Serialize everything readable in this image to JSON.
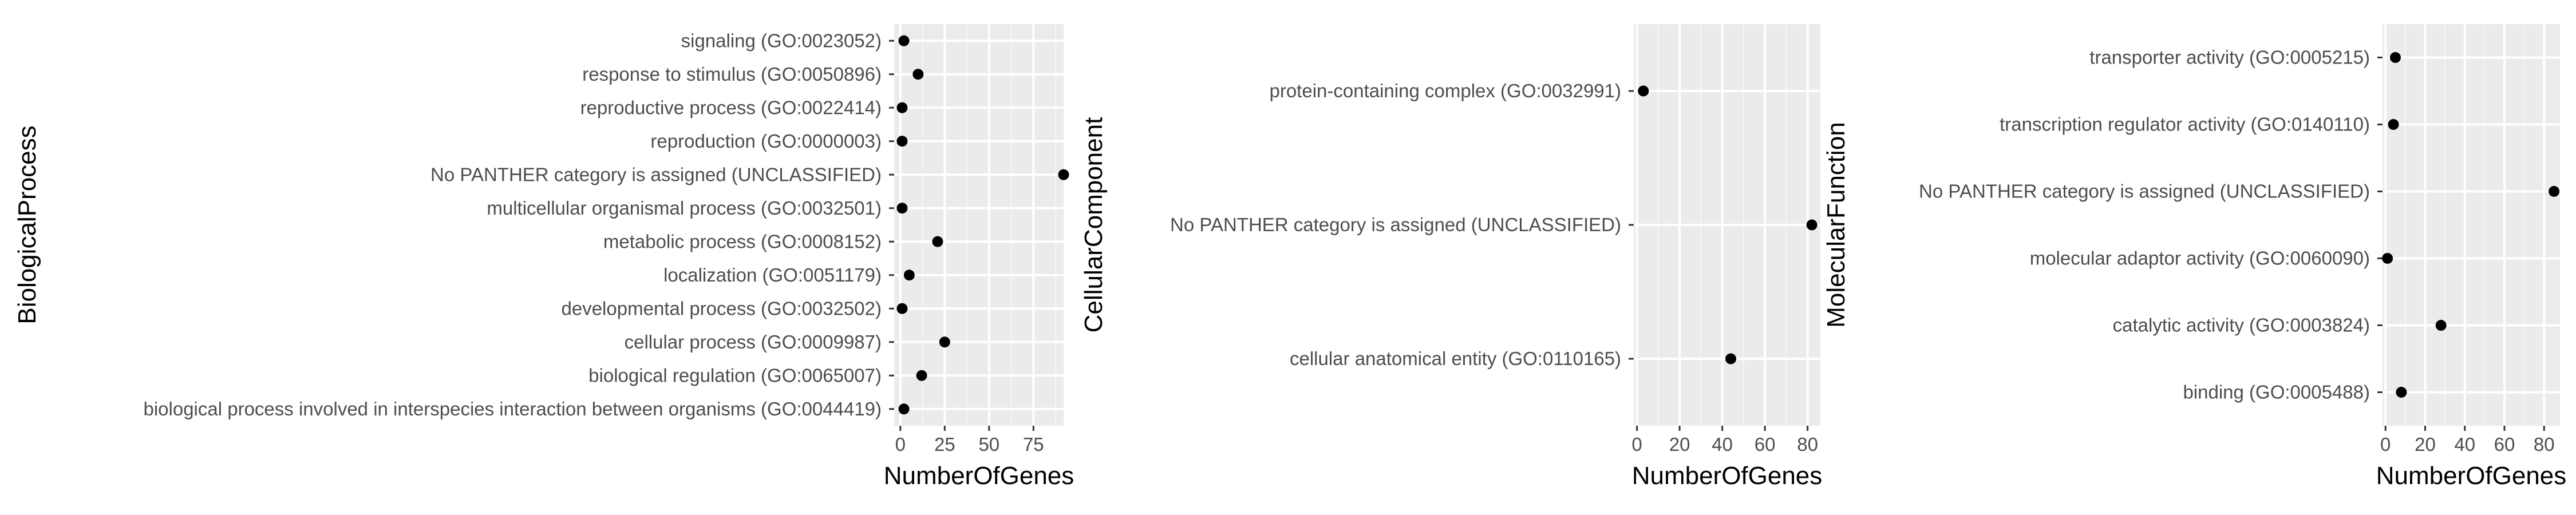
{
  "chart_data": [
    {
      "type": "scatter",
      "title": "",
      "xlabel": "NumberOfGenes",
      "ylabel": "BiologicalProcess",
      "xlim": [
        -3.5,
        92
      ],
      "xticks": [
        0,
        25,
        50,
        75
      ],
      "grid": true,
      "categories": [
        "signaling (GO:0023052)",
        "response to stimulus (GO:0050896)",
        "reproductive process (GO:0022414)",
        "reproduction (GO:0000003)",
        "No PANTHER category is assigned (UNCLASSIFIED)",
        "multicellular organismal process (GO:0032501)",
        "metabolic process (GO:0008152)",
        "localization (GO:0051179)",
        "developmental process (GO:0032502)",
        "cellular process (GO:0009987)",
        "biological regulation (GO:0065007)",
        "biological process involved in interspecies interaction between organisms (GO:0044419)"
      ],
      "values": [
        2,
        10,
        1,
        1,
        92,
        1,
        21,
        5,
        1,
        25,
        12,
        2
      ]
    },
    {
      "type": "scatter",
      "title": "",
      "xlabel": "NumberOfGenes",
      "ylabel": "CellularComponent",
      "xlim": [
        -1.5,
        86
      ],
      "xticks": [
        0,
        20,
        40,
        60,
        80
      ],
      "grid": true,
      "categories": [
        "protein-containing complex (GO:0032991)",
        "No PANTHER category is assigned (UNCLASSIFIED)",
        "cellular anatomical entity (GO:0110165)"
      ],
      "values": [
        3,
        82,
        44
      ]
    },
    {
      "type": "scatter",
      "title": "",
      "xlabel": "NumberOfGenes",
      "ylabel": "MolecularFunction",
      "xlim": [
        -1.5,
        88
      ],
      "xticks": [
        0,
        20,
        40,
        60,
        80
      ],
      "grid": true,
      "categories": [
        "transporter activity (GO:0005215)",
        "transcription regulator activity (GO:0140110)",
        "No PANTHER category is assigned (UNCLASSIFIED)",
        "molecular adaptor activity (GO:0060090)",
        "catalytic activity (GO:0003824)",
        "binding (GO:0005488)"
      ],
      "values": [
        5,
        4,
        85,
        1,
        28,
        8
      ]
    }
  ]
}
